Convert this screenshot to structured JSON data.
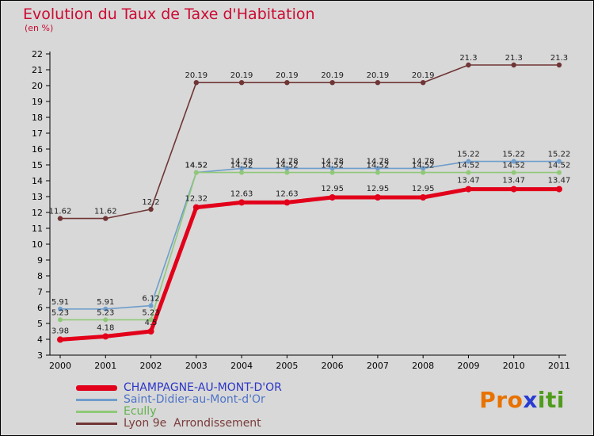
{
  "title": "Evolution du Taux de Taxe d'Habitation",
  "subtitle": "(en %)",
  "colors": {
    "title": "#cc0a32",
    "background": "#d8d8d8",
    "axis": "#000000",
    "data_label": "#1c1c1c"
  },
  "chart_data": {
    "type": "line",
    "title": "Evolution du Taux de Taxe d'Habitation",
    "subtitle": "(en %)",
    "xlabel": "",
    "ylabel": "en %",
    "x": [
      2000,
      2001,
      2002,
      2003,
      2004,
      2005,
      2006,
      2007,
      2008,
      2009,
      2010,
      2011
    ],
    "ylim": [
      3,
      22
    ],
    "ytick_step": 1,
    "grid": false,
    "legend_position": "bottom-left",
    "series": [
      {
        "name": "CHAMPAGNE-AU-MONT-D'OR",
        "color": "#e2001a",
        "legend_label_color": "#2c36c8",
        "line_width": 5,
        "marker_radius": 4,
        "label_offset": 8,
        "values": [
          3.98,
          4.18,
          4.5,
          12.32,
          12.63,
          12.63,
          12.95,
          12.95,
          12.95,
          13.47,
          13.47,
          13.47
        ]
      },
      {
        "name": "Saint-Didier-au-Mont-d'Or",
        "color": "#6f9ecc",
        "legend_label_color": "#4f74c8",
        "line_width": 1.6,
        "marker_radius": 3,
        "label_offset": 6,
        "values": [
          5.91,
          5.91,
          6.12,
          14.52,
          14.78,
          14.78,
          14.78,
          14.78,
          14.78,
          15.22,
          15.22,
          15.22
        ]
      },
      {
        "name": "Ecully",
        "color": "#90c878",
        "legend_label_color": "#63b24e",
        "line_width": 1.6,
        "marker_radius": 3,
        "label_offset": 6,
        "values": [
          5.23,
          5.23,
          5.23,
          14.52,
          14.52,
          14.52,
          14.52,
          14.52,
          14.52,
          14.52,
          14.52,
          14.52
        ]
      },
      {
        "name": "Lyon 9e  Arrondissement",
        "color": "#703535",
        "legend_label_color": "#7b3b3b",
        "line_width": 1.6,
        "marker_radius": 3.2,
        "label_offset": 6,
        "values": [
          11.62,
          11.62,
          12.2,
          20.19,
          20.19,
          20.19,
          20.19,
          20.19,
          20.19,
          21.3,
          21.3,
          21.3
        ]
      }
    ]
  },
  "logo": {
    "part_pro": "Pro",
    "part_x": "x",
    "part_iti": "iti",
    "color_pro": "#e87200",
    "color_x": "#283cd2",
    "color_iti": "#4f9c1d"
  }
}
